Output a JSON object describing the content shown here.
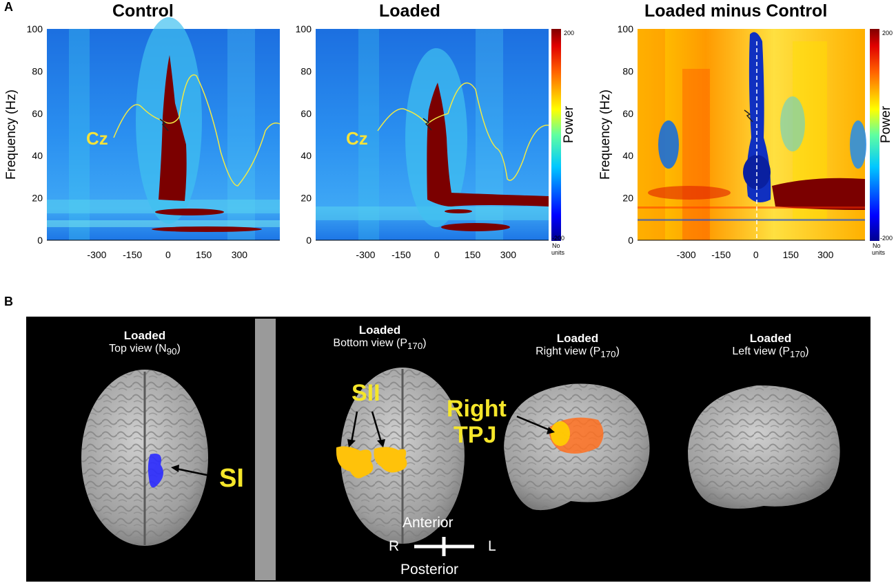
{
  "panel_a": {
    "letter": "A",
    "charts": [
      {
        "title": "Control",
        "ylabel": "Frequency (Hz)",
        "annotation": "Cz",
        "show_colorbar": false
      },
      {
        "title": "Loaded",
        "ylabel": "",
        "annotation": "Cz",
        "show_colorbar": true
      },
      {
        "title": "Loaded minus Control",
        "ylabel": "Frequency (Hz)",
        "annotation": "",
        "show_colorbar": true
      }
    ],
    "colorbar": {
      "label": "Power",
      "max": "200",
      "min": "-200",
      "units_line1": "No",
      "units_line2": "units",
      "colors": [
        "#0000a0",
        "#0040ff",
        "#00c0ff",
        "#40ffc0",
        "#ffff00",
        "#ff8000",
        "#ff0000",
        "#800000"
      ]
    }
  },
  "chart_data": [
    {
      "type": "heatmap",
      "title": "Control",
      "xlabel": "",
      "ylabel": "Frequency (Hz)",
      "x_ticks": [
        -300,
        -150,
        0,
        150,
        300
      ],
      "y_ticks": [
        0,
        20,
        40,
        60,
        80,
        100
      ],
      "xlim": [
        -510,
        470
      ],
      "ylim": [
        0,
        100
      ],
      "overlay_line": "Cz",
      "colormap": "jet"
    },
    {
      "type": "heatmap",
      "title": "Loaded",
      "xlabel": "",
      "ylabel": "",
      "x_ticks": [
        -300,
        -150,
        0,
        150,
        300
      ],
      "y_ticks": [
        0,
        20,
        40,
        60,
        80,
        100
      ],
      "xlim": [
        -510,
        470
      ],
      "ylim": [
        0,
        100
      ],
      "overlay_line": "Cz",
      "colormap": "jet",
      "colorbar": {
        "label": "Power",
        "range": [
          -200,
          200
        ]
      }
    },
    {
      "type": "heatmap",
      "title": "Loaded minus Control",
      "xlabel": "",
      "ylabel": "Frequency (Hz)",
      "x_ticks": [
        -300,
        -150,
        0,
        150,
        300
      ],
      "y_ticks": [
        0,
        20,
        40,
        60,
        80,
        100
      ],
      "xlim": [
        -510,
        470
      ],
      "ylim": [
        0,
        100
      ],
      "colormap": "jet",
      "colorbar": {
        "label": "Power",
        "range": [
          -200,
          200
        ]
      }
    }
  ],
  "panel_b": {
    "letter": "B",
    "views": [
      {
        "bold": "Loaded",
        "line": "Top view (N",
        "sub": "90",
        "tail": ")"
      },
      {
        "bold": "Loaded",
        "line": "Bottom view (P",
        "sub": "170",
        "tail": ")"
      },
      {
        "bold": "Loaded",
        "line": "Right view (P",
        "sub": "170",
        "tail": ")"
      },
      {
        "bold": "Loaded",
        "line": "Left view (P",
        "sub": "170",
        "tail": ")"
      }
    ],
    "labels": {
      "si": "SI",
      "sii": "SII",
      "right": "Right",
      "tpj": "TPJ"
    },
    "orientation": {
      "anterior": "Anterior",
      "posterior": "Posterior",
      "r": "R",
      "l": "L"
    }
  }
}
